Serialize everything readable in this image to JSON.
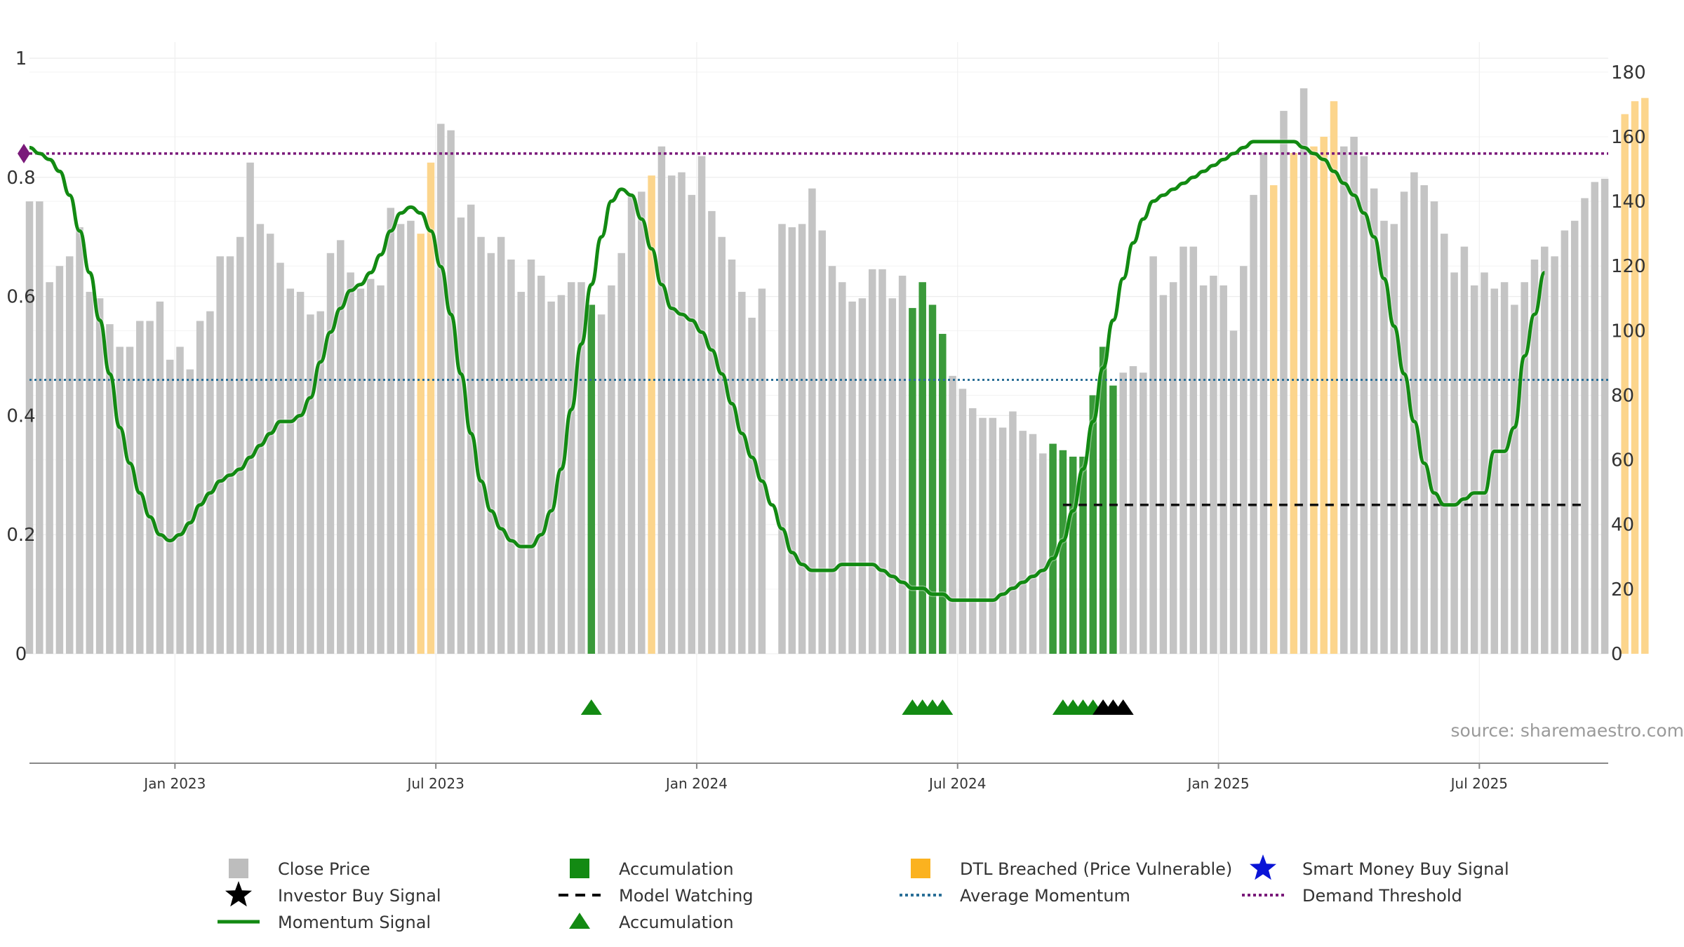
{
  "chart_data": {
    "type": "bar",
    "source": "source: sharemaestro.com",
    "left_axis": {
      "ticks": [
        "0",
        "0.2",
        "0.4",
        "0.6",
        "0.8",
        "1"
      ],
      "range": [
        0,
        1
      ]
    },
    "right_axis": {
      "ticks": [
        "0",
        "20",
        "40",
        "60",
        "80",
        "100",
        "120",
        "140",
        "160",
        "180"
      ],
      "range": [
        0,
        180
      ]
    },
    "x_ticks": [
      {
        "label": "Jan 2023",
        "week": 14.5
      },
      {
        "label": "Jul 2023",
        "week": 40.5
      },
      {
        "label": "Jan 2024",
        "week": 66.5
      },
      {
        "label": "Jul 2024",
        "week": 92.5
      },
      {
        "label": "Jan 2025",
        "week": 118.5
      },
      {
        "label": "Jul 2025",
        "week": 144.5
      }
    ],
    "average_momentum": 0.46,
    "demand_threshold": 0.84,
    "model_watching": {
      "start_week": 103,
      "end_week": 155,
      "value": 0.25
    },
    "series_meta": {
      "close_price_color": "#c4c4c4",
      "accumulation_color": "#3a9a3a",
      "dtl_color": "#fcd58c",
      "momentum_color": "#128a12",
      "average_color": "#2a6f97",
      "threshold_color": "#7a1a7a",
      "model_watching_color": "#111111"
    },
    "close_price": [
      140,
      140,
      115,
      120,
      123,
      132,
      112,
      110,
      102,
      95,
      95,
      103,
      103,
      109,
      91,
      95,
      88,
      103,
      106,
      123,
      123,
      129,
      152,
      133,
      130,
      121,
      113,
      112,
      105,
      106,
      124,
      128,
      118,
      113,
      116,
      114,
      138,
      133,
      134,
      130,
      152,
      164,
      162,
      135,
      139,
      129,
      124,
      129,
      122,
      112,
      122,
      117,
      109,
      111,
      115,
      115,
      108,
      105,
      114,
      124,
      142,
      143,
      148,
      157,
      148,
      149,
      142,
      154,
      137,
      129,
      122,
      112,
      104,
      113,
      0,
      133,
      132,
      133,
      144,
      131,
      120,
      115,
      109,
      110,
      119,
      119,
      110,
      117,
      107,
      115,
      108,
      99,
      86,
      82,
      76,
      73,
      73,
      70,
      75,
      69,
      68,
      62,
      65,
      63,
      61,
      61,
      80,
      95,
      83,
      87,
      89,
      87,
      123,
      111,
      115,
      126,
      126,
      114,
      117,
      114,
      100,
      120,
      142,
      155,
      145,
      168,
      155,
      175,
      157,
      160,
      171,
      157,
      160,
      154,
      144,
      134,
      133,
      143,
      149,
      145,
      140,
      130,
      118,
      126,
      114,
      118,
      113,
      115,
      108,
      115,
      122,
      126,
      123,
      131,
      134,
      141,
      146,
      147,
      0,
      167,
      171,
      172
    ],
    "bar_category": [
      "C",
      "C",
      "C",
      "C",
      "C",
      "C",
      "C",
      "C",
      "C",
      "C",
      "C",
      "C",
      "C",
      "C",
      "C",
      "C",
      "C",
      "C",
      "C",
      "C",
      "C",
      "C",
      "C",
      "C",
      "C",
      "C",
      "C",
      "C",
      "C",
      "C",
      "C",
      "C",
      "C",
      "C",
      "C",
      "C",
      "C",
      "C",
      "C",
      "D",
      "D",
      "C",
      "C",
      "C",
      "C",
      "C",
      "C",
      "C",
      "C",
      "C",
      "C",
      "C",
      "C",
      "C",
      "C",
      "C",
      "A",
      "C",
      "C",
      "C",
      "C",
      "C",
      "D",
      "C",
      "C",
      "C",
      "C",
      "C",
      "C",
      "C",
      "C",
      "C",
      "C",
      "C",
      "C",
      "C",
      "C",
      "C",
      "C",
      "C",
      "C",
      "C",
      "C",
      "C",
      "C",
      "C",
      "C",
      "C",
      "A",
      "A",
      "A",
      "A",
      "C",
      "C",
      "C",
      "C",
      "C",
      "C",
      "C",
      "C",
      "C",
      "C",
      "A",
      "A",
      "A",
      "A",
      "A",
      "A",
      "A",
      "C",
      "C",
      "C",
      "C",
      "C",
      "C",
      "C",
      "C",
      "C",
      "C",
      "C",
      "C",
      "C",
      "C",
      "C",
      "D",
      "C",
      "D",
      "C",
      "D",
      "D",
      "D",
      "C",
      "C",
      "C",
      "C",
      "C",
      "C",
      "C",
      "C",
      "C",
      "C",
      "C",
      "C",
      "C",
      "C",
      "C",
      "C",
      "C",
      "C",
      "C",
      "C",
      "C",
      "C",
      "C",
      "C",
      "C",
      "C",
      "C",
      "C",
      "D",
      "D",
      "D"
    ],
    "momentum": [
      0.85,
      0.84,
      0.83,
      0.81,
      0.77,
      0.71,
      0.64,
      0.56,
      0.47,
      0.38,
      0.32,
      0.27,
      0.23,
      0.2,
      0.19,
      0.2,
      0.22,
      0.25,
      0.27,
      0.29,
      0.3,
      0.31,
      0.33,
      0.35,
      0.37,
      0.39,
      0.39,
      0.4,
      0.43,
      0.49,
      0.54,
      0.58,
      0.61,
      0.62,
      0.64,
      0.67,
      0.71,
      0.74,
      0.75,
      0.74,
      0.71,
      0.65,
      0.57,
      0.47,
      0.37,
      0.29,
      0.24,
      0.21,
      0.19,
      0.18,
      0.18,
      0.2,
      0.24,
      0.31,
      0.41,
      0.52,
      0.62,
      0.7,
      0.76,
      0.78,
      0.77,
      0.73,
      0.68,
      0.62,
      0.58,
      0.57,
      0.56,
      0.54,
      0.51,
      0.47,
      0.42,
      0.37,
      0.33,
      0.29,
      0.25,
      0.21,
      0.17,
      0.15,
      0.14,
      0.14,
      0.14,
      0.15,
      0.15,
      0.15,
      0.15,
      0.14,
      0.13,
      0.12,
      0.11,
      0.11,
      0.1,
      0.1,
      0.09,
      0.09,
      0.09,
      0.09,
      0.09,
      0.1,
      0.11,
      0.12,
      0.13,
      0.14,
      0.16,
      0.19,
      0.24,
      0.31,
      0.39,
      0.48,
      0.56,
      0.63,
      0.69,
      0.73,
      0.76,
      0.77,
      0.78,
      0.79,
      0.8,
      0.81,
      0.82,
      0.83,
      0.84,
      0.85,
      0.86,
      0.86,
      0.86,
      0.86,
      0.86,
      0.85,
      0.84,
      0.83,
      0.81,
      0.79,
      0.77,
      0.74,
      0.7,
      0.63,
      0.55,
      0.47,
      0.39,
      0.32,
      0.27,
      0.25,
      0.25,
      0.26,
      0.27,
      0.27,
      0.34,
      0.34,
      0.38,
      0.5,
      0.57,
      0.64
    ],
    "accumulation_triangles": [
      56,
      88,
      89,
      90,
      91,
      103,
      104,
      105,
      106
    ],
    "investor_buy_signals": [
      107,
      108,
      109
    ],
    "smart_money_buy_signals": []
  },
  "legend": {
    "items": [
      {
        "label": "Close Price",
        "symbol": "square",
        "color": "#bdbdbd"
      },
      {
        "label": "Accumulation",
        "symbol": "square",
        "color": "#138a13"
      },
      {
        "label": "DTL Breached (Price Vulnerable)",
        "symbol": "square",
        "color": "#fbb21f"
      },
      {
        "label": "Smart Money Buy Signal",
        "symbol": "star",
        "color": "#0a14d6"
      },
      {
        "label": "Investor Buy Signal",
        "symbol": "star",
        "color": "#000000"
      },
      {
        "label": "Model Watching",
        "symbol": "dash",
        "color": "#000000"
      },
      {
        "label": "Average Momentum",
        "symbol": "dotted",
        "color": "#2a6f97"
      },
      {
        "label": "Demand Threshold",
        "symbol": "dotted",
        "color": "#7a1a7a"
      },
      {
        "label": "Momentum Signal",
        "symbol": "line",
        "color": "#138a13"
      },
      {
        "label": "Accumulation",
        "symbol": "triangle",
        "color": "#138a13"
      }
    ]
  }
}
